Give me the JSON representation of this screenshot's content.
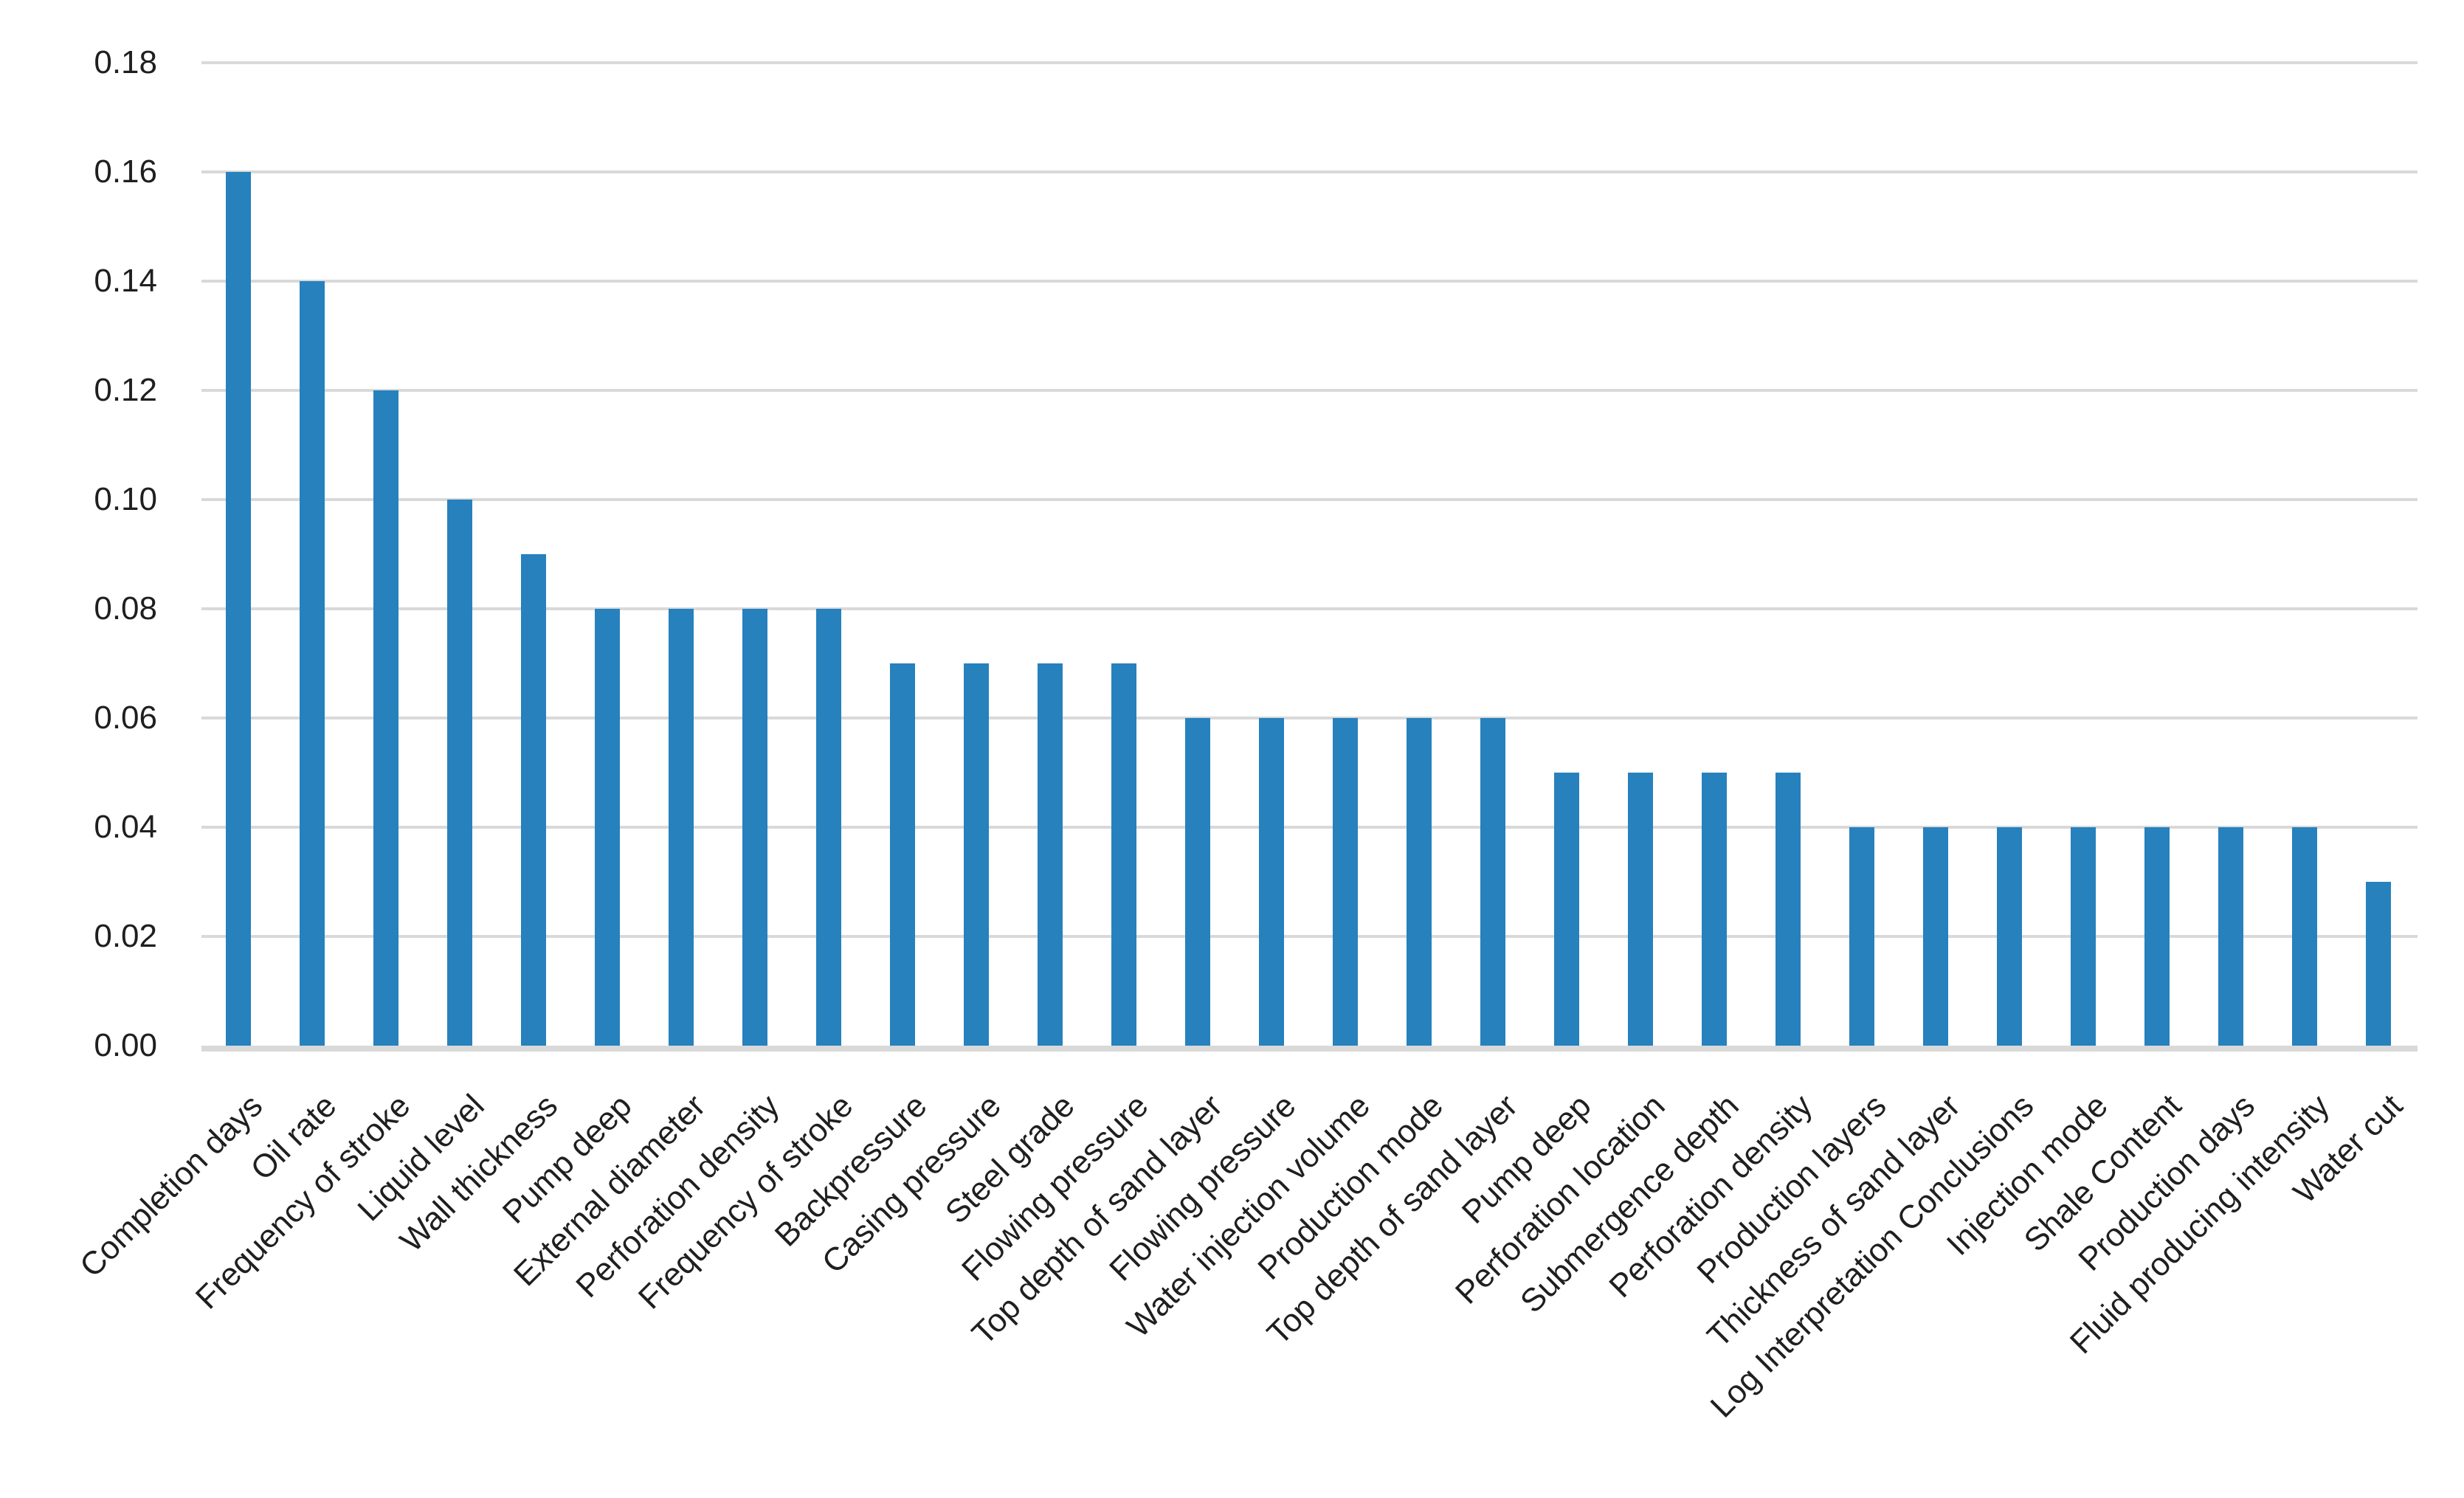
{
  "chart_data": {
    "type": "bar",
    "title": "",
    "xlabel": "",
    "ylabel": "",
    "categories": [
      "Completion days",
      "Oil rate",
      "Frequency of stroke",
      "Liquid level",
      "Wall thickness",
      "Pump deep",
      "External diameter",
      "Perforation density",
      "Frequency of stroke",
      "Backpressure",
      "Casing pressure",
      "Steel grade",
      "Flowing pressure",
      "Top depth of sand layer",
      "Flowing pressure",
      "Water injection volume",
      "Production mode",
      "Top depth of sand layer",
      "Pump deep",
      "Perforation location",
      "Submergence depth",
      "Perforation density",
      "Production layers",
      "Thickness of sand layer",
      "Log Interpretation Conclusions",
      "Injection mode",
      "Shale Content",
      "Production days",
      "Fluid producing intensity",
      "Water cut"
    ],
    "values": [
      0.16,
      0.14,
      0.12,
      0.1,
      0.09,
      0.08,
      0.08,
      0.08,
      0.08,
      0.07,
      0.07,
      0.07,
      0.07,
      0.06,
      0.06,
      0.06,
      0.06,
      0.06,
      0.05,
      0.05,
      0.05,
      0.05,
      0.04,
      0.04,
      0.04,
      0.04,
      0.04,
      0.04,
      0.04,
      0.03
    ],
    "yticks": [
      "0.00",
      "0.02",
      "0.04",
      "0.06",
      "0.08",
      "0.10",
      "0.12",
      "0.14",
      "0.16",
      "0.18"
    ],
    "ylim": [
      0,
      0.18
    ],
    "ytick_step": 0.02,
    "grid": true,
    "legend": "none",
    "colors": {
      "bar": "#2681BD",
      "gridline": "#D9D9D9",
      "axis_line": "#D9D9D9",
      "tick_text": "#1F1F1F",
      "background": "#FFFFFF"
    }
  }
}
